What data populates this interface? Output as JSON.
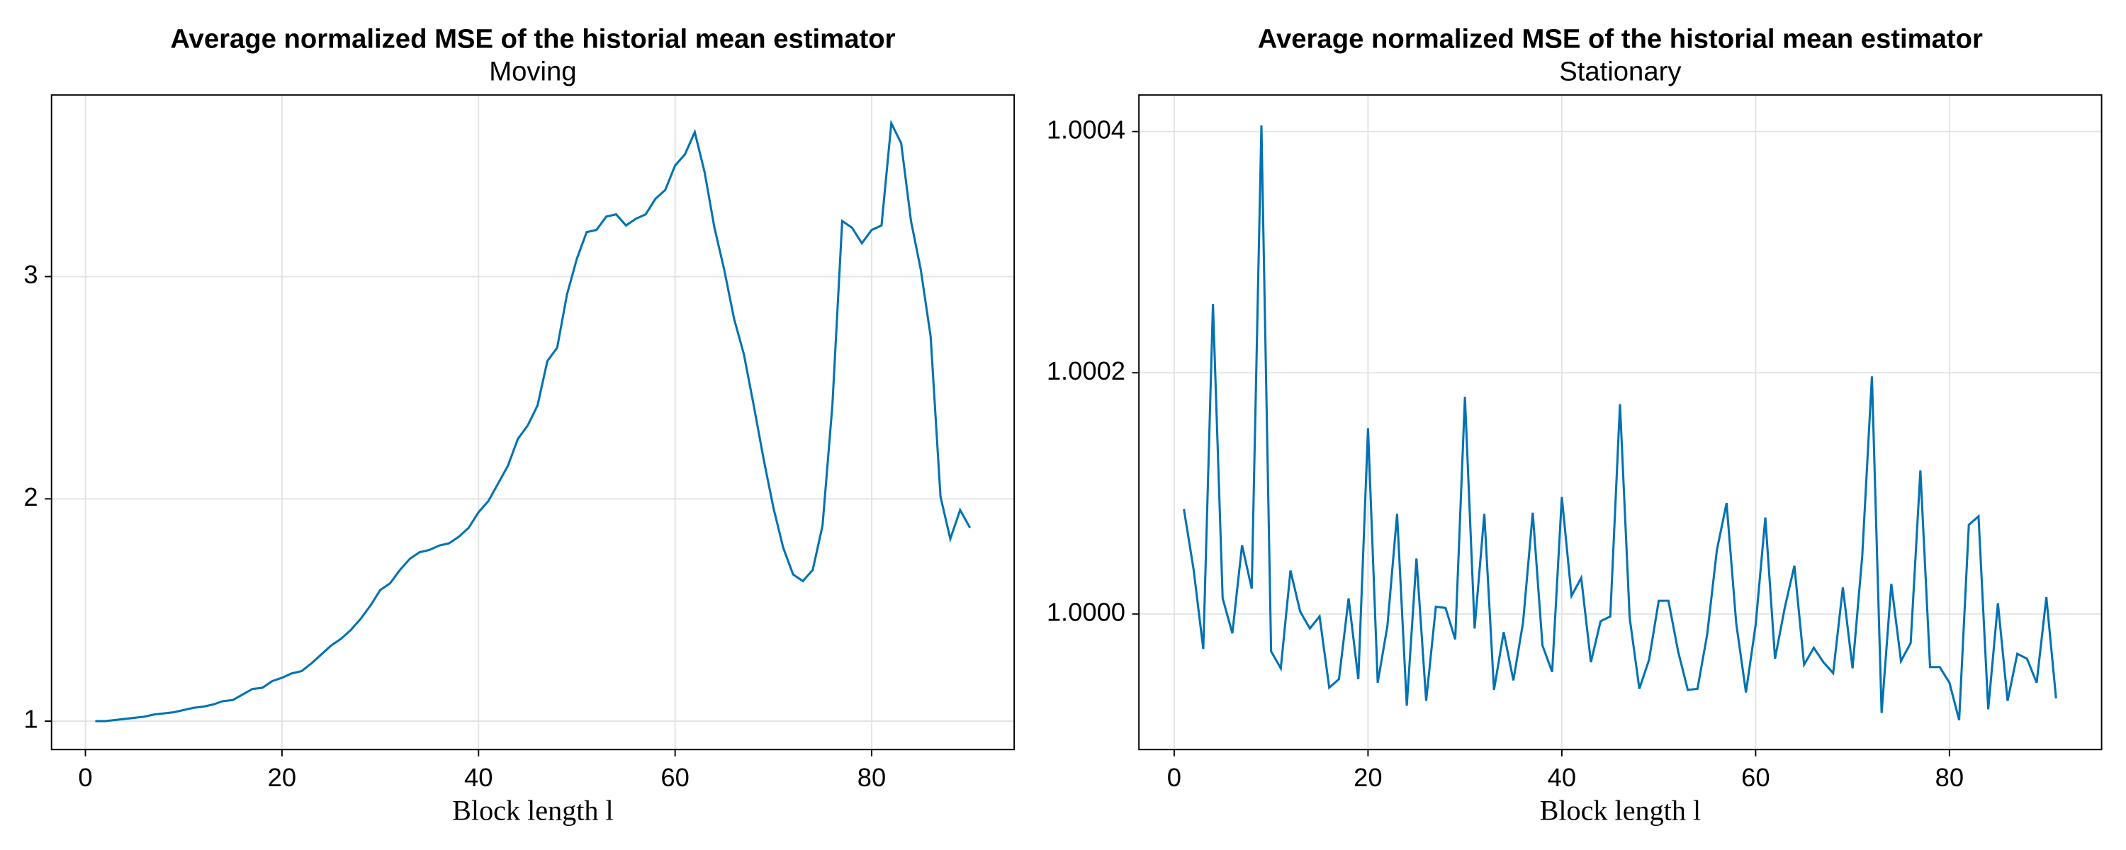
{
  "chart_data": [
    {
      "type": "line",
      "title": "Average normalized MSE of the historial mean estimator",
      "subtitle": "Moving",
      "xlabel": "Block length l",
      "color": "#0072b2",
      "grid": true,
      "xlim": [
        -3.45,
        94.5
      ],
      "ylim": [
        0.872,
        3.817
      ],
      "xticks": [
        0,
        20,
        40,
        60,
        80
      ],
      "yticks": [
        1,
        2,
        3
      ],
      "x": [
        1,
        2,
        3,
        4,
        5,
        6,
        7,
        8,
        9,
        10,
        11,
        12,
        13,
        14,
        15,
        16,
        17,
        18,
        19,
        20,
        21,
        22,
        23,
        24,
        25,
        26,
        27,
        28,
        29,
        30,
        31,
        32,
        33,
        34,
        35,
        36,
        37,
        38,
        39,
        40,
        41,
        42,
        43,
        44,
        45,
        46,
        47,
        48,
        49,
        50,
        51,
        52,
        53,
        54,
        55,
        56,
        57,
        58,
        59,
        60,
        61,
        62,
        63,
        64,
        65,
        66,
        67,
        68,
        69,
        70,
        71,
        72,
        73,
        74,
        75,
        76,
        77,
        78,
        79,
        80,
        81,
        82,
        83,
        84,
        85,
        86,
        87,
        88,
        89,
        90
      ],
      "values": [
        1.0,
        1.0,
        1.005,
        1.01,
        1.015,
        1.02,
        1.03,
        1.035,
        1.04,
        1.05,
        1.06,
        1.065,
        1.075,
        1.09,
        1.095,
        1.12,
        1.145,
        1.15,
        1.18,
        1.195,
        1.215,
        1.225,
        1.26,
        1.3,
        1.34,
        1.37,
        1.41,
        1.46,
        1.52,
        1.59,
        1.62,
        1.68,
        1.73,
        1.76,
        1.77,
        1.79,
        1.8,
        1.83,
        1.87,
        1.94,
        1.99,
        2.07,
        2.15,
        2.27,
        2.33,
        2.42,
        2.62,
        2.68,
        2.92,
        3.08,
        3.2,
        3.21,
        3.27,
        3.28,
        3.23,
        3.26,
        3.28,
        3.35,
        3.39,
        3.5,
        3.55,
        3.65,
        3.47,
        3.22,
        3.03,
        2.81,
        2.65,
        2.42,
        2.18,
        1.96,
        1.78,
        1.66,
        1.63,
        1.68,
        1.88,
        2.42,
        3.25,
        3.22,
        3.15,
        3.21,
        3.23,
        3.69,
        3.6,
        3.25,
        3.03,
        2.73,
        2.01,
        1.82,
        1.95,
        1.87
      ]
    },
    {
      "type": "line",
      "title": "Average normalized MSE of the historial mean estimator",
      "subtitle": "Stationary",
      "xlabel": "Block length l",
      "color": "#0072b2",
      "grid": true,
      "xlim": [
        -3.64,
        95.7
      ],
      "ylim": [
        0.9998876,
        1.0004303
      ],
      "xticks": [
        0,
        20,
        40,
        60,
        80
      ],
      "yticks": [
        {
          "value": 1.0,
          "label": "1.0000"
        },
        {
          "value": 1.0002,
          "label": "1.0002"
        },
        {
          "value": 1.0004,
          "label": "1.0004"
        }
      ],
      "x": [
        1,
        2,
        3,
        4,
        5,
        6,
        7,
        8,
        9,
        10,
        11,
        12,
        13,
        14,
        15,
        16,
        17,
        18,
        19,
        20,
        21,
        22,
        23,
        24,
        25,
        26,
        27,
        28,
        29,
        30,
        31,
        32,
        33,
        34,
        35,
        36,
        37,
        38,
        39,
        40,
        41,
        42,
        43,
        44,
        45,
        46,
        47,
        48,
        49,
        50,
        51,
        52,
        53,
        54,
        55,
        56,
        57,
        58,
        59,
        60,
        61,
        62,
        63,
        64,
        65,
        66,
        67,
        68,
        69,
        70,
        71,
        72,
        73,
        74,
        75,
        76,
        77,
        78,
        79,
        80,
        81,
        82,
        83,
        84,
        85,
        86,
        87,
        88,
        89,
        90,
        91
      ],
      "values": [
        1.000087,
        1.000037,
        0.999971,
        1.000257,
        1.000013,
        0.999984,
        1.000057,
        1.000021,
        1.000405,
        0.999969,
        0.999955,
        1.000036,
        1.000002,
        0.999988,
        0.999998,
        0.999939,
        0.999946,
        1.000013,
        0.999946,
        1.000154,
        0.999943,
        0.99999,
        1.000083,
        0.999924,
        1.000046,
        0.999928,
        1.000006,
        1.000005,
        0.999979,
        1.00018,
        0.999988,
        1.000083,
        0.999937,
        0.999985,
        0.999945,
        0.999993,
        1.000084,
        0.999974,
        0.999952,
        1.000097,
        1.000015,
        1.00003,
        0.99996,
        0.999994,
        0.999998,
        1.000174,
        0.999997,
        0.999938,
        0.999962,
        1.000011,
        1.000011,
        0.999969,
        0.999937,
        0.999938,
        0.999983,
        1.000053,
        1.000092,
        0.999992,
        0.999935,
        0.999991,
        1.00008,
        0.999963,
        1.000005,
        1.00004,
        0.999958,
        0.999972,
        0.99996,
        0.999951,
        1.000022,
        0.999955,
        1.000048,
        1.000197,
        0.999918,
        1.000025,
        0.999961,
        0.999976,
        1.000119,
        0.999956,
        0.999956,
        0.999943,
        0.999912,
        1.000074,
        1.000081,
        0.999921,
        1.000009,
        0.999928,
        0.999967,
        0.999963,
        0.999943,
        1.000014,
        0.99993
      ]
    }
  ]
}
